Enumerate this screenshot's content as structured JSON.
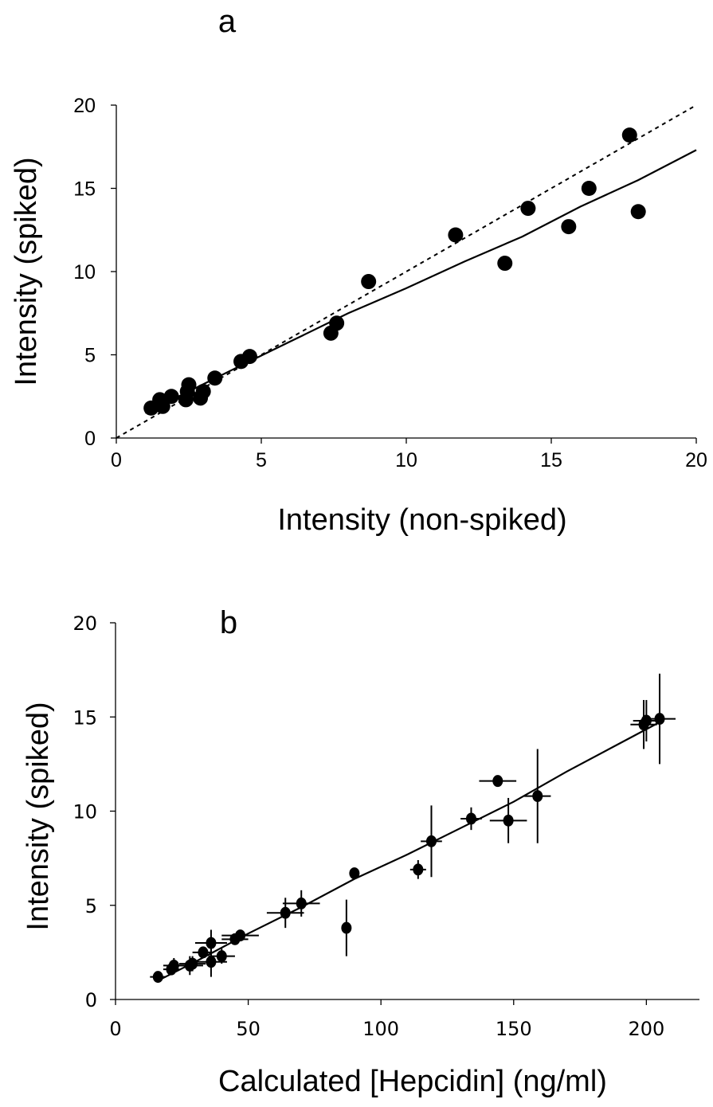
{
  "chart_data": [
    {
      "type": "scatter",
      "panel_label": "a",
      "xlabel": "Intensity (non-spiked)",
      "ylabel": "Intensity (spiked)",
      "xlim": [
        0,
        20
      ],
      "ylim": [
        0,
        20
      ],
      "xticks": [
        "0",
        "5",
        "10",
        "15",
        "20"
      ],
      "yticks": [
        "0",
        "5",
        "10",
        "15",
        "20"
      ],
      "grid": false,
      "legend": "none",
      "points": [
        {
          "x": 1.2,
          "y": 1.8
        },
        {
          "x": 1.5,
          "y": 2.3
        },
        {
          "x": 1.6,
          "y": 1.9
        },
        {
          "x": 1.9,
          "y": 2.5
        },
        {
          "x": 2.4,
          "y": 2.3
        },
        {
          "x": 2.45,
          "y": 2.8
        },
        {
          "x": 2.5,
          "y": 3.2
        },
        {
          "x": 2.9,
          "y": 2.4
        },
        {
          "x": 3.0,
          "y": 2.8
        },
        {
          "x": 3.4,
          "y": 3.6
        },
        {
          "x": 4.3,
          "y": 4.6
        },
        {
          "x": 4.6,
          "y": 4.9
        },
        {
          "x": 7.4,
          "y": 6.3
        },
        {
          "x": 7.6,
          "y": 6.9
        },
        {
          "x": 8.7,
          "y": 9.4
        },
        {
          "x": 11.7,
          "y": 12.2
        },
        {
          "x": 13.4,
          "y": 10.5
        },
        {
          "x": 14.2,
          "y": 13.8
        },
        {
          "x": 15.6,
          "y": 12.7
        },
        {
          "x": 16.3,
          "y": 15.0
        },
        {
          "x": 17.7,
          "y": 18.2
        },
        {
          "x": 18.0,
          "y": 13.6
        }
      ],
      "lines": [
        {
          "style": "dashed",
          "points": [
            {
              "x": 0,
              "y": 0
            },
            {
              "x": 20,
              "y": 20
            }
          ]
        },
        {
          "style": "solid",
          "points": [
            {
              "x": 1.0,
              "y": 1.5
            },
            {
              "x": 2.5,
              "y": 2.8
            },
            {
              "x": 4.0,
              "y": 4.1
            },
            {
              "x": 6.0,
              "y": 5.8
            },
            {
              "x": 8.0,
              "y": 7.5
            },
            {
              "x": 10.0,
              "y": 9.0
            },
            {
              "x": 12.0,
              "y": 10.6
            },
            {
              "x": 14.0,
              "y": 12.1
            },
            {
              "x": 16.0,
              "y": 13.9
            },
            {
              "x": 18.0,
              "y": 15.5
            },
            {
              "x": 20.0,
              "y": 17.3
            }
          ]
        }
      ]
    },
    {
      "type": "scatter",
      "panel_label": "b",
      "xlabel": "Calculated [Hepcidin] (ng/ml)",
      "ylabel": "Intensity (spiked)",
      "xlim": [
        0,
        220
      ],
      "ylim": [
        0,
        20
      ],
      "xticks": [
        "0",
        "50",
        "100",
        "150",
        "200"
      ],
      "yticks": [
        "0",
        "5",
        "10",
        "15",
        "20"
      ],
      "grid": false,
      "legend": "none",
      "points": [
        {
          "x": 16,
          "y": 1.2,
          "xerr": 3,
          "yerr": 0.2
        },
        {
          "x": 21,
          "y": 1.6,
          "xerr": 3,
          "yerr": 0.3
        },
        {
          "x": 22,
          "y": 1.8,
          "xerr": 4,
          "yerr": 0.4
        },
        {
          "x": 28,
          "y": 1.8,
          "xerr": 5,
          "yerr": 0.5
        },
        {
          "x": 29,
          "y": 1.9,
          "xerr": 5,
          "yerr": 0.4
        },
        {
          "x": 33,
          "y": 2.5,
          "xerr": 4,
          "yerr": 0.3
        },
        {
          "x": 36,
          "y": 2.0,
          "xerr": 6,
          "yerr": 0.8
        },
        {
          "x": 36,
          "y": 3.0,
          "xerr": 6,
          "yerr": 0.7
        },
        {
          "x": 40,
          "y": 2.3,
          "xerr": 5,
          "yerr": 0.4
        },
        {
          "x": 45,
          "y": 3.2,
          "xerr": 5,
          "yerr": 0.3
        },
        {
          "x": 47,
          "y": 3.4,
          "xerr": 7,
          "yerr": 0.3
        },
        {
          "x": 64,
          "y": 4.6,
          "xerr": 7,
          "yerr": 0.8
        },
        {
          "x": 70,
          "y": 5.1,
          "xerr": 7,
          "yerr": 0.7
        },
        {
          "x": 87,
          "y": 3.8,
          "xerr": 1,
          "yerr": 1.5
        },
        {
          "x": 90,
          "y": 6.7,
          "xerr": 1,
          "yerr": 0.3
        },
        {
          "x": 114,
          "y": 6.9,
          "xerr": 3,
          "yerr": 0.5
        },
        {
          "x": 119,
          "y": 8.4,
          "xerr": 4,
          "yerr": 1.9
        },
        {
          "x": 134,
          "y": 9.6,
          "xerr": 4,
          "yerr": 0.6
        },
        {
          "x": 144,
          "y": 11.6,
          "xerr": 7,
          "yerr": 0.2
        },
        {
          "x": 148,
          "y": 9.5,
          "xerr": 7,
          "yerr": 1.2
        },
        {
          "x": 159,
          "y": 10.8,
          "xerr": 5,
          "yerr": 2.5
        },
        {
          "x": 199,
          "y": 14.6,
          "xerr": 5,
          "yerr": 1.3
        },
        {
          "x": 200,
          "y": 14.8,
          "xerr": 5,
          "yerr": 1.1
        },
        {
          "x": 205,
          "y": 14.9,
          "xerr": 6,
          "yerr": 2.4
        }
      ],
      "lines": [
        {
          "style": "solid",
          "points": [
            {
              "x": 16,
              "y": 1.0
            },
            {
              "x": 30,
              "y": 2.0
            },
            {
              "x": 50,
              "y": 3.5
            },
            {
              "x": 70,
              "y": 4.9
            },
            {
              "x": 90,
              "y": 6.4
            },
            {
              "x": 110,
              "y": 7.7
            },
            {
              "x": 130,
              "y": 9.1
            },
            {
              "x": 150,
              "y": 10.5
            },
            {
              "x": 170,
              "y": 12.1
            },
            {
              "x": 190,
              "y": 13.6
            },
            {
              "x": 206,
              "y": 14.8
            }
          ]
        }
      ]
    }
  ]
}
